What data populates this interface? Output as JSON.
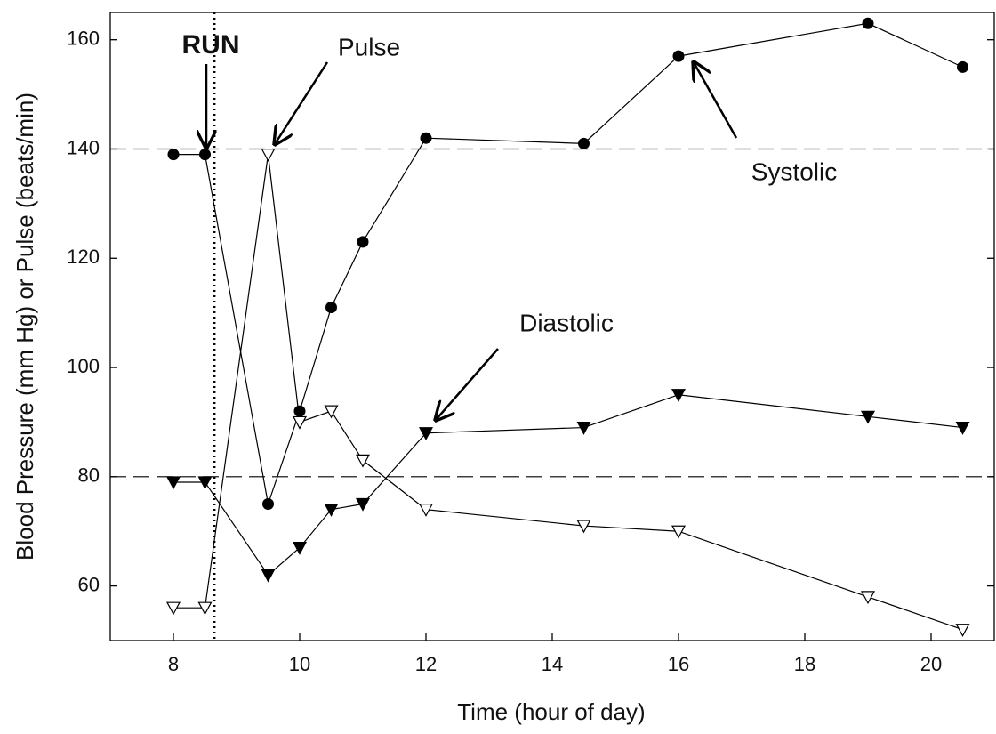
{
  "chart_data": {
    "type": "line",
    "x_label": "Time (hour of day)",
    "y_label": "Blood Pressure (mm Hg) or Pulse (beats/min)",
    "xlim": [
      7,
      21
    ],
    "xticks": [
      8,
      10,
      12,
      14,
      16,
      18,
      20
    ],
    "ylim": [
      50,
      165
    ],
    "yticks": [
      60,
      80,
      100,
      120,
      140,
      160
    ],
    "reference_lines": [
      140,
      80
    ],
    "event": {
      "label": "RUN",
      "x": 8.65
    },
    "series": [
      {
        "name": "Systolic",
        "color": "#000000",
        "marker": "circle",
        "x": [
          8,
          8.5,
          9.5,
          10,
          10.5,
          11,
          12,
          14.5,
          16,
          19,
          20.5
        ],
        "values": [
          139,
          139,
          75,
          92,
          111,
          123,
          142,
          141,
          157,
          163,
          155
        ]
      },
      {
        "name": "Diastolic",
        "color": "#000000",
        "marker": "triangle-down-filled",
        "x": [
          8,
          8.5,
          9.5,
          10,
          10.5,
          11,
          12,
          14.5,
          16,
          19,
          20.5
        ],
        "values": [
          79,
          79,
          62,
          67,
          74,
          75,
          88,
          89,
          95,
          91,
          89
        ]
      },
      {
        "name": "Pulse",
        "color": "#000000",
        "marker": "triangle-down-open",
        "x": [
          8,
          8.5,
          9.5,
          10,
          10.5,
          11,
          12,
          14.5,
          16,
          19,
          20.5
        ],
        "values": [
          56,
          56,
          139,
          90,
          92,
          83,
          74,
          71,
          70,
          58,
          52
        ]
      }
    ]
  }
}
